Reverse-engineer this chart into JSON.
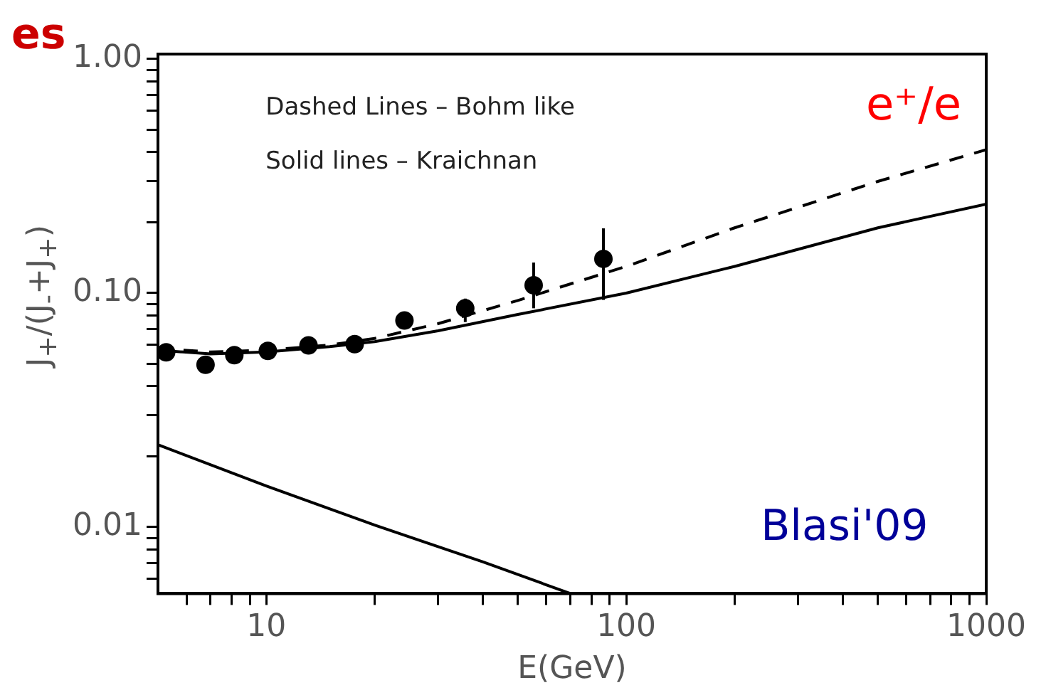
{
  "chart_data": {
    "type": "line",
    "xlabel": "E(GeV)",
    "ylabel": "J$_{+}$/(J$_{-}$+J$_{+}$)",
    "log": "xy",
    "xlim": [
      5,
      1000
    ],
    "ylim": [
      0.0052,
      1.05
    ],
    "grid": false,
    "legend": false,
    "xticks": [
      {
        "value": 6,
        "label": null
      },
      {
        "value": 7,
        "label": null
      },
      {
        "value": 8,
        "label": null
      },
      {
        "value": 9,
        "label": null
      },
      10,
      {
        "value": 20,
        "label": null
      },
      {
        "value": 30,
        "label": null
      },
      {
        "value": 40,
        "label": null
      },
      {
        "value": 50,
        "label": null
      },
      {
        "value": 60,
        "label": null
      },
      {
        "value": 70,
        "label": null
      },
      {
        "value": 80,
        "label": null
      },
      {
        "value": 90,
        "label": null
      },
      100,
      {
        "value": 200,
        "label": null
      },
      {
        "value": 300,
        "label": null
      },
      {
        "value": 400,
        "label": null
      },
      {
        "value": 500,
        "label": null
      },
      {
        "value": 600,
        "label": null
      },
      {
        "value": 700,
        "label": null
      },
      {
        "value": 800,
        "label": null
      },
      {
        "value": 900,
        "label": null
      },
      1000
    ],
    "yticks": [
      {
        "value": 0.006,
        "label": null
      },
      {
        "value": 0.007,
        "label": null
      },
      {
        "value": 0.008,
        "label": null
      },
      {
        "value": 0.009,
        "label": null
      },
      {
        "value": 0.01,
        "label": "0.01"
      },
      {
        "value": 0.02,
        "label": null
      },
      {
        "value": 0.03,
        "label": null
      },
      {
        "value": 0.04,
        "label": null
      },
      {
        "value": 0.05,
        "label": null
      },
      {
        "value": 0.06,
        "label": null
      },
      {
        "value": 0.07,
        "label": null
      },
      {
        "value": 0.08,
        "label": null
      },
      {
        "value": 0.09,
        "label": null
      },
      {
        "value": 0.1,
        "label": "0.10"
      },
      {
        "value": 0.2,
        "label": null
      },
      {
        "value": 0.3,
        "label": null
      },
      {
        "value": 0.4,
        "label": null
      },
      {
        "value": 0.5,
        "label": null
      },
      {
        "value": 0.6,
        "label": null
      },
      {
        "value": 0.7,
        "label": null
      },
      {
        "value": 0.8,
        "label": null
      },
      {
        "value": 0.9,
        "label": null
      },
      {
        "value": 1,
        "label": "1.00"
      }
    ],
    "annotations": [
      "es",
      "Dashed Lines – Bohm like",
      "Solid lines – Kraichnan",
      "e⁺/e",
      "Blasi'09"
    ],
    "series": [
      {
        "type": "scatter",
        "color": "#000000",
        "marker": "circle",
        "x": [
          5.27,
          6.78,
          8.15,
          10.1,
          13.1,
          17.6,
          24.2,
          35.7,
          55.3,
          86.4
        ],
        "values": [
          0.0558,
          0.0494,
          0.0543,
          0.0566,
          0.0598,
          0.0605,
          0.0763,
          0.0861,
          0.108,
          0.14
        ],
        "errors": [
          null,
          null,
          null,
          null,
          null,
          null,
          null,
          [
            0.0752,
            0.0947
          ],
          [
            0.0861,
            0.135
          ],
          [
            0.0935,
            0.189
          ]
        ]
      },
      {
        "color": "#000000",
        "marker": "none",
        "line_style": "dashed",
        "x": [
          5,
          7,
          10,
          15,
          20,
          30,
          50,
          100,
          200,
          500,
          1000
        ],
        "values": [
          0.058,
          0.056,
          0.057,
          0.06,
          0.064,
          0.074,
          0.093,
          0.13,
          0.19,
          0.3,
          0.41
        ]
      },
      {
        "color": "#000000",
        "marker": "none",
        "line_style": "solid",
        "x": [
          5,
          7,
          10,
          15,
          20,
          30,
          50,
          100,
          200,
          500,
          1000
        ],
        "values": [
          0.057,
          0.055,
          0.056,
          0.059,
          0.062,
          0.069,
          0.081,
          0.1,
          0.13,
          0.19,
          0.24
        ]
      },
      {
        "color": "#000000",
        "marker": "none",
        "line_style": "solid",
        "x": [
          5,
          10,
          20,
          40,
          70
        ],
        "values": [
          0.0225,
          0.015,
          0.0102,
          0.0071,
          0.0052
        ]
      }
    ]
  }
}
